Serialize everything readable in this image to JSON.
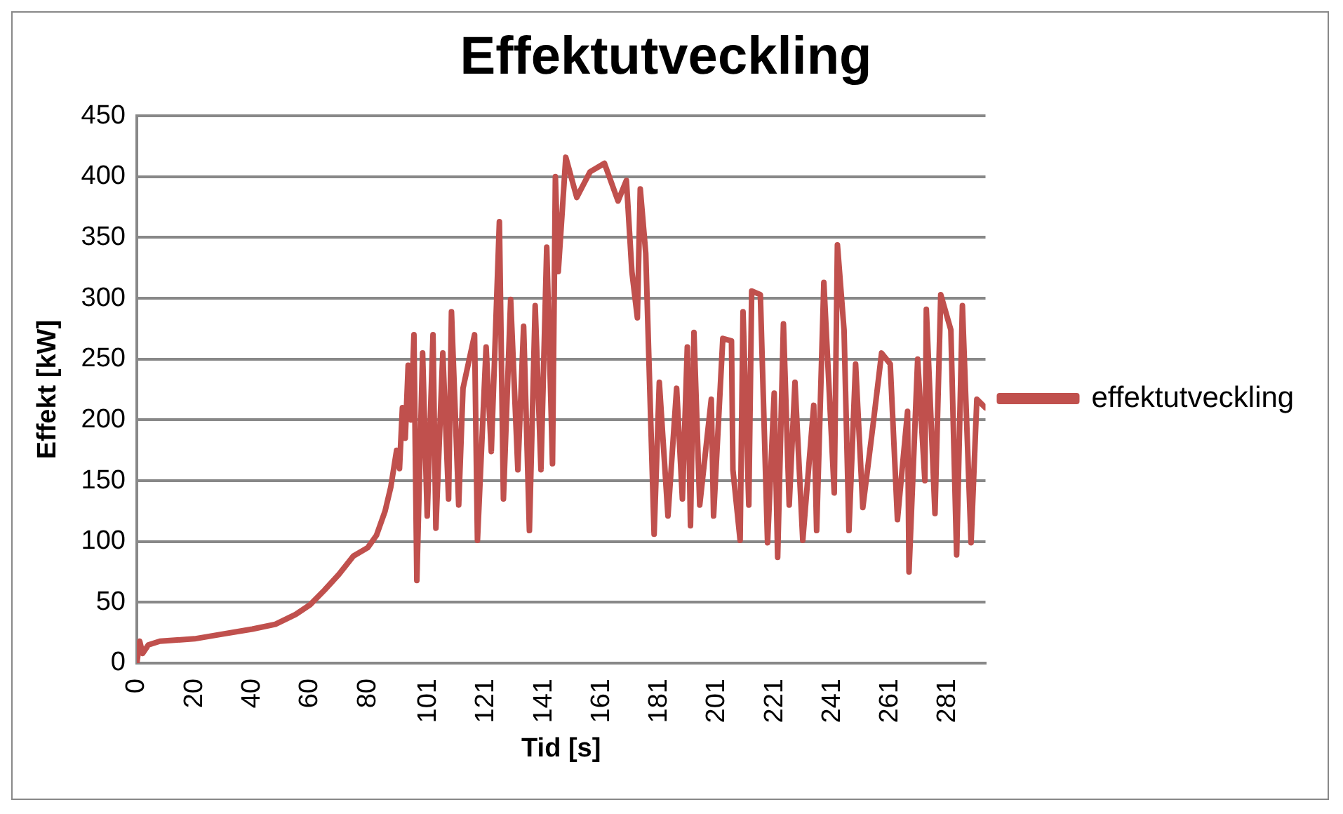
{
  "chart_data": {
    "type": "line",
    "title": "Effektutveckling",
    "xlabel": "Tid [s]",
    "ylabel": "Effekt [kW]",
    "xlim": [
      0,
      294
    ],
    "xticks": [
      0,
      20,
      40,
      60,
      80,
      101,
      121,
      141,
      161,
      181,
      201,
      221,
      241,
      261,
      281
    ],
    "ylim": [
      0,
      450
    ],
    "yticks": [
      0,
      50,
      100,
      150,
      200,
      250,
      300,
      350,
      400,
      450
    ],
    "grid": "y",
    "legend": "right",
    "marker": "none",
    "line_style": "solid",
    "series": [
      {
        "name": "effektutveckling",
        "color": "#c0504d",
        "x": [
          0,
          1,
          2,
          4,
          8,
          20,
          30,
          40,
          48,
          55,
          60,
          65,
          70,
          75,
          80,
          83,
          86,
          88,
          90,
          91,
          92,
          93,
          94,
          95,
          96,
          97,
          99,
          100.6,
          102.6,
          103.6,
          106,
          108,
          109,
          111.5,
          113,
          117,
          118,
          121,
          122.8,
          125.6,
          127,
          129.5,
          132,
          134,
          136,
          138,
          140,
          142,
          144,
          145,
          146,
          148.6,
          152.4,
          157,
          162,
          166.7,
          169.6,
          171.5,
          173.4,
          174.4,
          176.3,
          179.2,
          181,
          184,
          187,
          189,
          190.7,
          191.8,
          193,
          195,
          199,
          199.8,
          203,
          206,
          206.5,
          209,
          210,
          212,
          213,
          216,
          218.5,
          220.8,
          222,
          224,
          226,
          228,
          230.7,
          234.5,
          235.5,
          238,
          241.6,
          242.7,
          245,
          246.7,
          249,
          251.5,
          255,
          258,
          261,
          263.5,
          267,
          267.5,
          270.5,
          273,
          273.5,
          276.5,
          278.5,
          282,
          284,
          286,
          289,
          291,
          294
        ],
        "values": [
          0,
          18,
          8,
          15,
          18,
          20,
          24,
          28,
          32,
          40,
          48,
          60,
          73,
          88,
          95,
          105,
          125,
          145,
          175,
          160,
          210,
          185,
          245,
          200,
          270,
          68,
          255,
          121,
          270,
          111,
          255,
          135,
          289,
          130,
          226,
          270,
          101,
          260,
          174,
          363,
          135,
          299,
          159,
          277,
          109,
          294,
          159,
          342,
          164,
          400,
          322,
          416,
          383,
          404,
          411,
          380,
          397,
          322,
          284,
          390,
          337,
          106,
          231,
          121,
          226,
          135,
          260,
          113,
          272,
          130,
          217,
          121,
          267,
          265,
          159,
          101,
          289,
          130,
          306,
          303,
          99,
          222,
          87,
          279,
          130,
          231,
          101,
          212,
          109,
          313,
          140,
          344,
          274,
          109,
          246,
          128,
          195,
          255,
          246,
          118,
          207,
          75,
          250,
          150,
          291,
          123,
          303,
          274,
          89,
          294,
          99,
          217,
          210
        ]
      }
    ]
  }
}
